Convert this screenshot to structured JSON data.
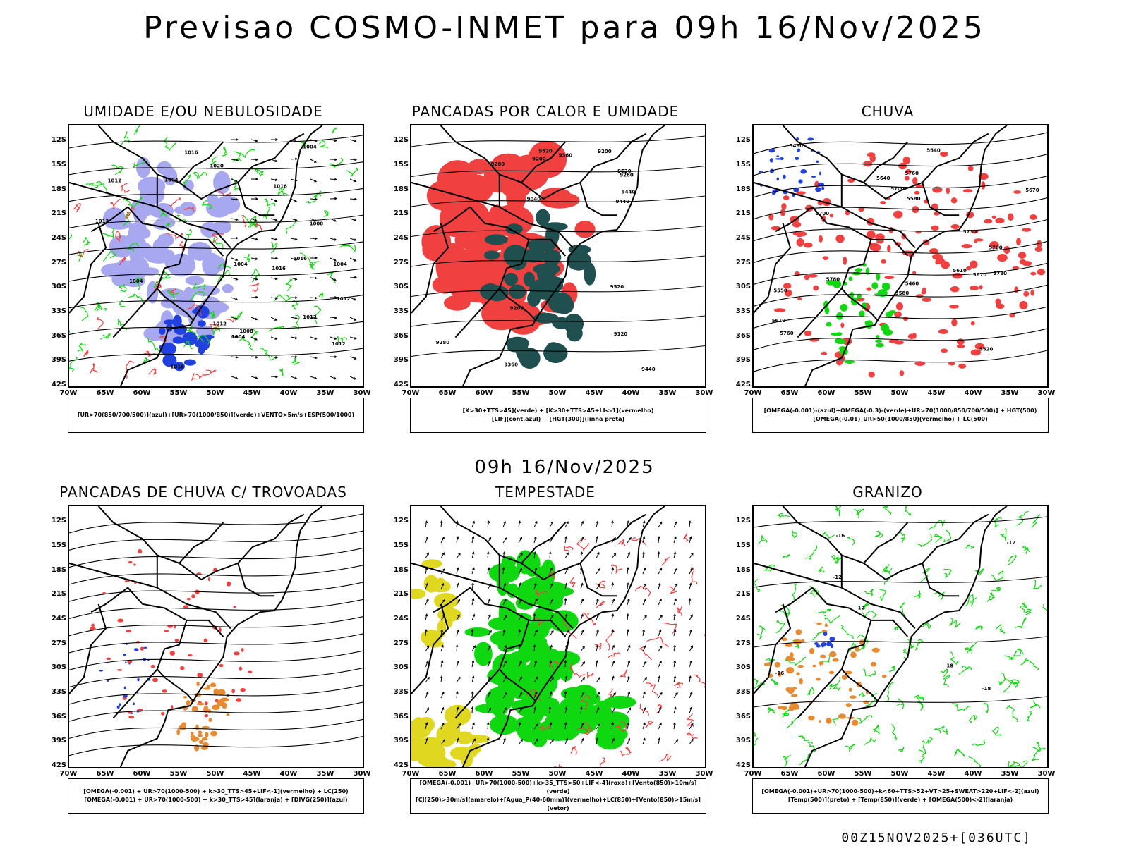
{
  "header": {
    "title": "Previsao COSMO-INMET  para 09h 16/Nov/2025",
    "middle_title": "09h 16/Nov/2025",
    "footer": "00Z15NOV2025+[036UTC]"
  },
  "axes": {
    "lat_labels": [
      "12S",
      "15S",
      "18S",
      "21S",
      "24S",
      "27S",
      "30S",
      "33S",
      "36S",
      "39S",
      "42S"
    ],
    "lon_labels": [
      "70W",
      "65W",
      "60W",
      "55W",
      "50W",
      "45W",
      "40W",
      "35W",
      "30W"
    ]
  },
  "colors": {
    "red": "#f04040",
    "green": "#10d810",
    "blue": "#2040e0",
    "lavender": "#a8a8f0",
    "darkteal": "#1f4f4f",
    "orange": "#e88a30",
    "yellow": "#e0d820"
  },
  "panels": [
    {
      "title": "UMIDADE E/OU NEBULOSIDADE",
      "legend": [
        "[UR>70(850/700/500)](azul)+[UR>70(1000/850)](verde)+VENTO>5m/s+ESP(500/1000)"
      ],
      "contour_labels": [
        "1012",
        "1012",
        "1016",
        "1012",
        "1012",
        "1016",
        "1016",
        "1004",
        "1012",
        "1020",
        "1016",
        "1016",
        "1004",
        "1004",
        "1004",
        "1004",
        "1008",
        "1004",
        "1012",
        "1008"
      ]
    },
    {
      "title": "PANCADAS POR CALOR E UMIDADE",
      "legend": [
        "[K>30+TTS>45](verde) + [K>30+TTS>45+LI<-1](vermelho)",
        "[LIF](cont.azul) + [HGT(300)](linha preta)"
      ],
      "contour_labels": [
        "9520",
        "9520",
        "9520",
        "9440",
        "9440",
        "9440",
        "9360",
        "9360",
        "9280",
        "9280",
        "9280",
        "9200",
        "9200",
        "9200",
        "9040",
        "9120"
      ]
    },
    {
      "title": "CHUVA",
      "legend": [
        "[OMEGA(-0.001)-(azul)+OMEGA(-0.3)-(verde)+UR>70(1000/850/700/500)] + HGT(500)",
        "[OMEGA(-0.01)_UR>50(1000/850)(vermelho) + LC(500)"
      ],
      "contour_labels": [
        "5780",
        "5760",
        "5780",
        "5700",
        "5760",
        "5730",
        "5700",
        "5670",
        "5700",
        "5640",
        "5610",
        "5580",
        "5550",
        "5580",
        "5610",
        "5640",
        "5670",
        "5460",
        "5460",
        "5520"
      ]
    },
    {
      "title": "PANCADAS DE CHUVA C/ TROVOADAS",
      "legend": [
        "[OMEGA(-0.001) + UR>70(1000-500) + k>30_TTS>45+LIF<-1](vermelho) + LC(250)",
        "[OMEGA(-0.001) + UR>70(1000-500) + k>30_TTS>45](laranja) + [DIVG(250)](azul)"
      ]
    },
    {
      "title": "TEMPESTADE",
      "legend": [
        "[OMEGA(-0.001)+UR>70(1000-500)+k>35_TTS>50+LIF<-4](roxo)+[Vento(850)>10m/s](verde)",
        "[CJ(250)>30m/s](amarelo)+[Agua_P(40-60mm)](vermelho)+LC(850)+[Vento(850)>15m/s](vetor)"
      ]
    },
    {
      "title": "GRANIZO",
      "legend": [
        "[OMEGA(-0.001)+UR>70(1000-500)+k<60+TTS>52+VT>25+SWEAT>220+LIF<-2](azul)",
        "[Temp(500)](preto) + [Temp(850)](verde) + [OMEGA(500)<-2](laranja)"
      ],
      "contour_labels": [
        "-12",
        "-12",
        "-18",
        "-16",
        "-18",
        "-12",
        "-16"
      ]
    }
  ]
}
